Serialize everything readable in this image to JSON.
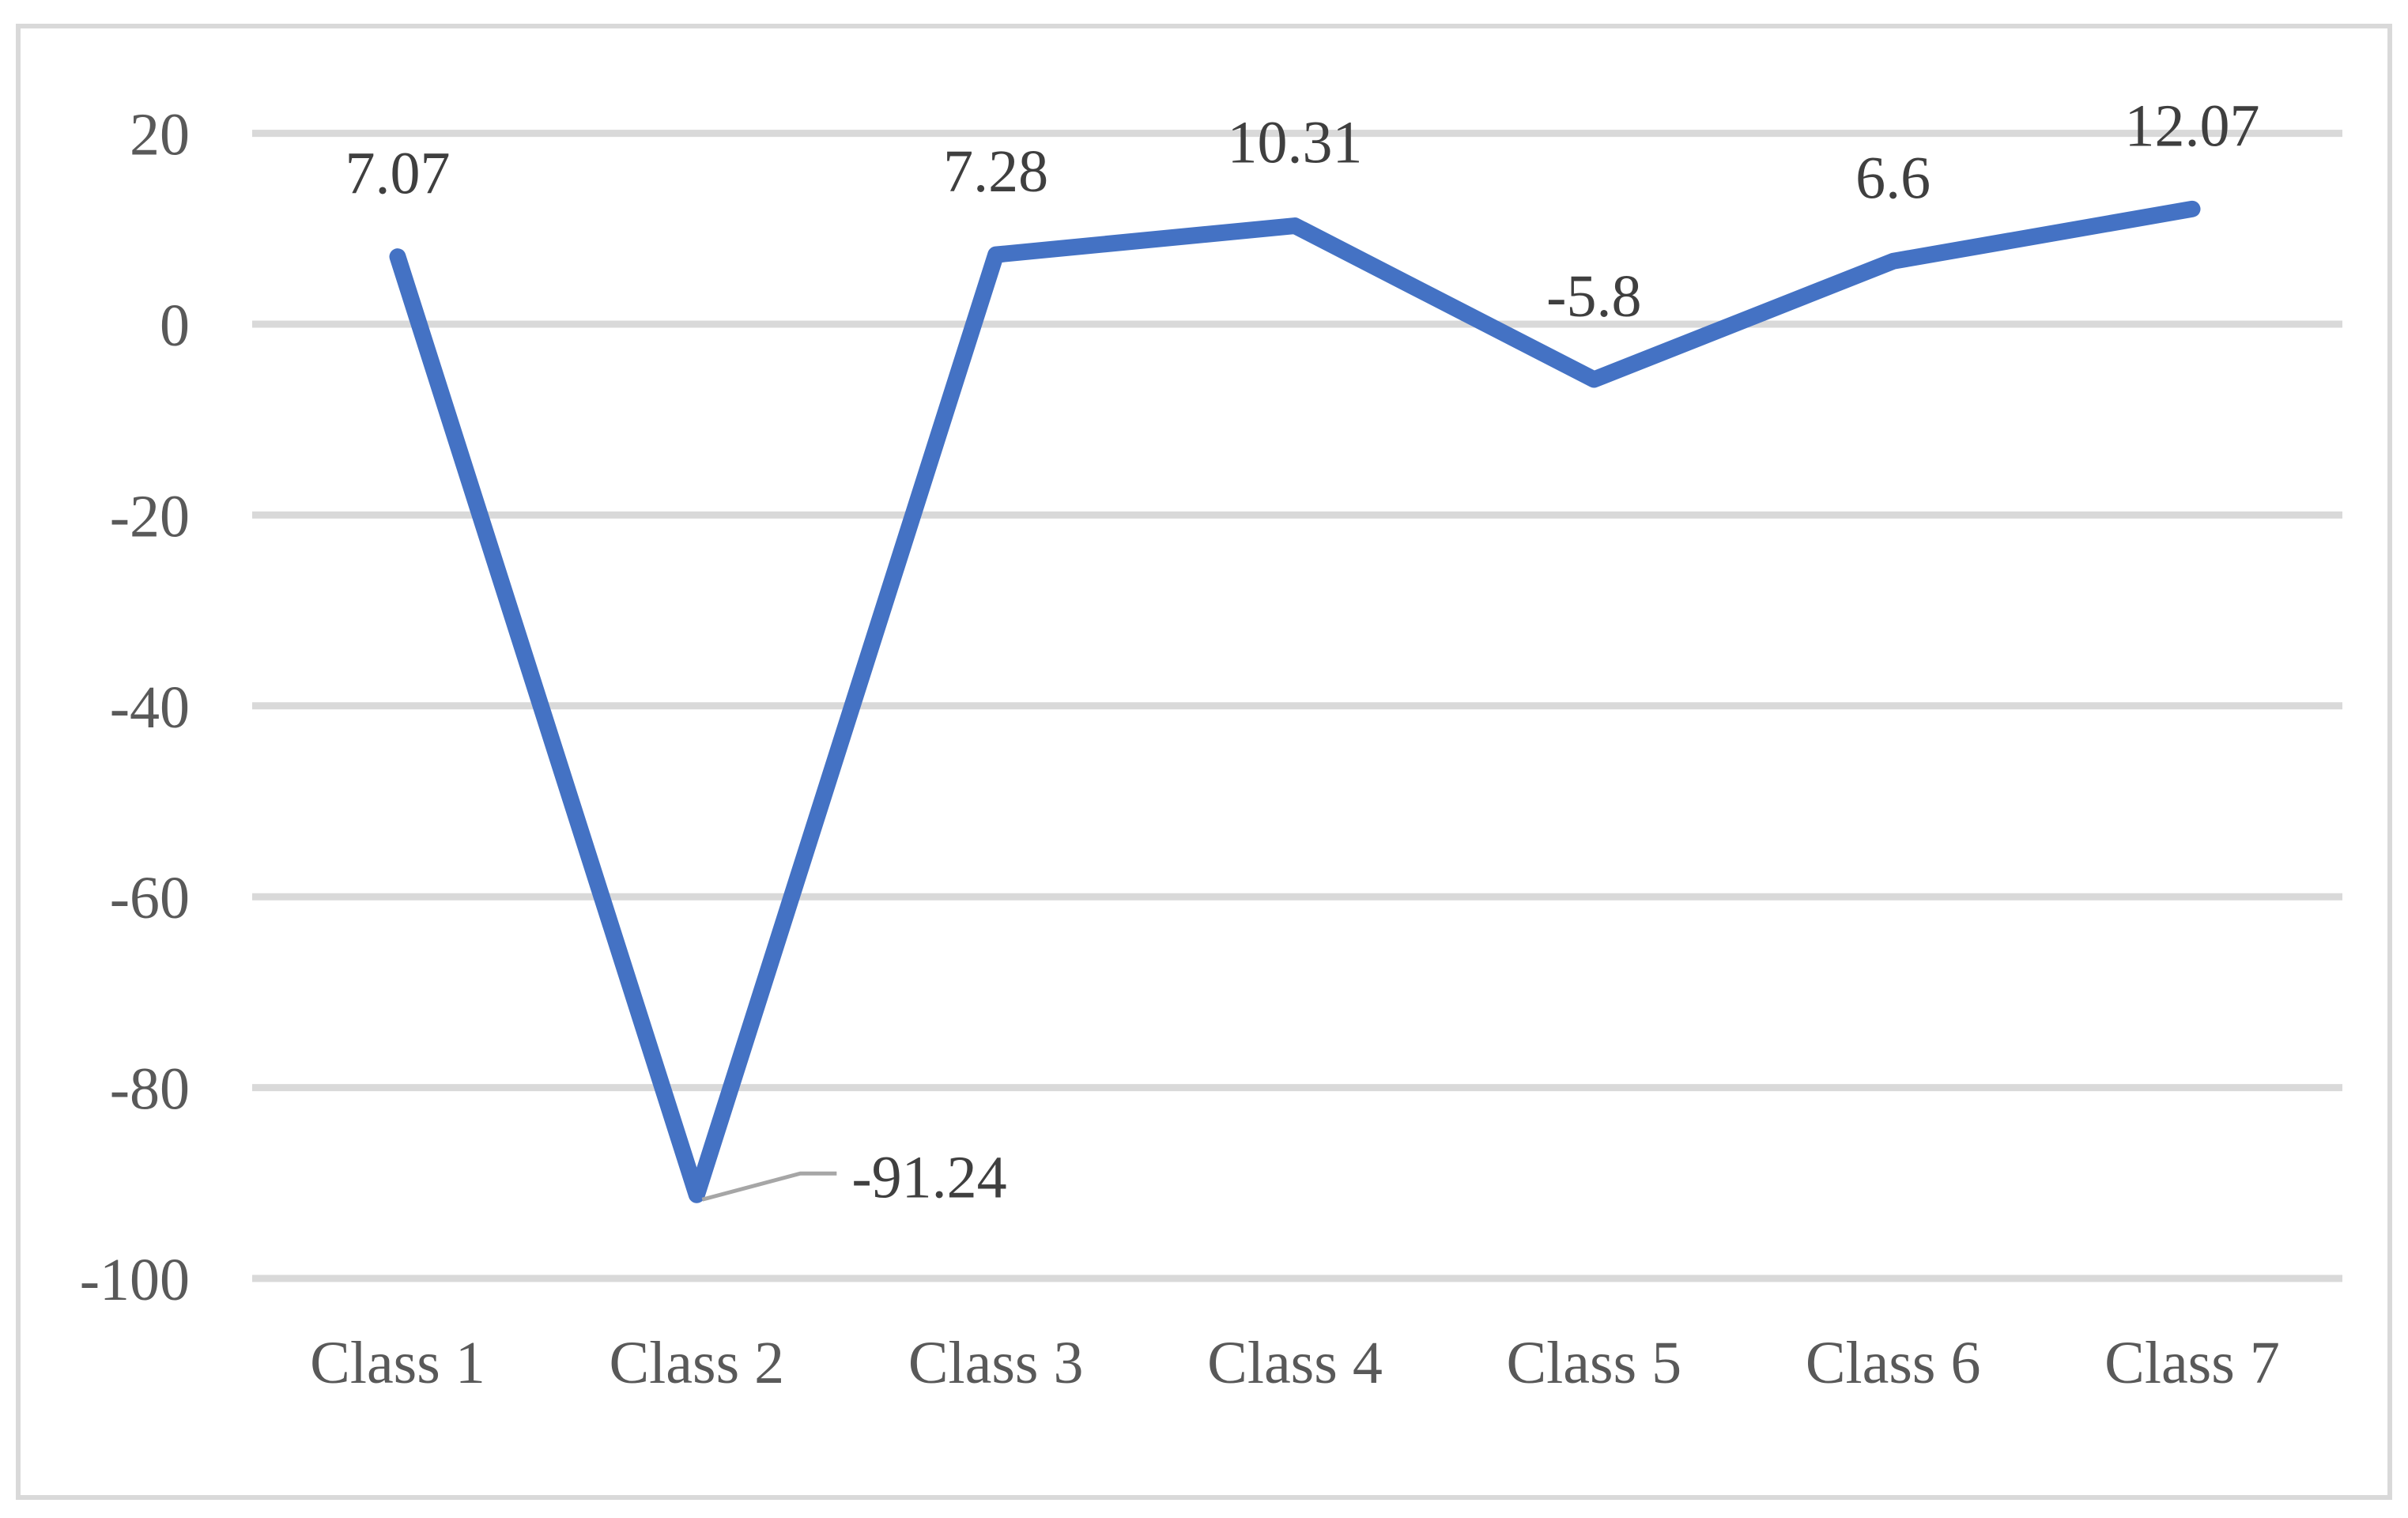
{
  "chart_data": {
    "type": "line",
    "title": "",
    "legend": "none",
    "grid": "horizontal",
    "categories": [
      "Class 1",
      "Class 2",
      "Class 3",
      "Class 4",
      "Class 5",
      "Class 6",
      "Class 7"
    ],
    "values": [
      7.07,
      -91.24,
      7.28,
      10.31,
      -5.8,
      6.6,
      12.07
    ],
    "data_labels": [
      "7.07",
      "-91.24",
      "7.28",
      "10.31",
      "-5.8",
      "6.6",
      "12.07"
    ],
    "callout": {
      "index": 1,
      "label": "-91.24"
    },
    "y_tick_labels": [
      "20",
      "0",
      "-20",
      "-40",
      "-60",
      "-80",
      "-100"
    ],
    "y_tick_values": [
      20,
      0,
      -20,
      -40,
      -60,
      -80,
      -100
    ],
    "ylim": [
      -100,
      20
    ],
    "xlabel": "",
    "ylabel": "",
    "colors": {
      "line": "#4472C4",
      "gridline": "#D9D9D9",
      "tick_label": "#595959",
      "data_label": "#3F3F3F",
      "leader_line": "#A6A6A6",
      "border": "#D9D9D9",
      "background": "#FFFFFF"
    }
  }
}
